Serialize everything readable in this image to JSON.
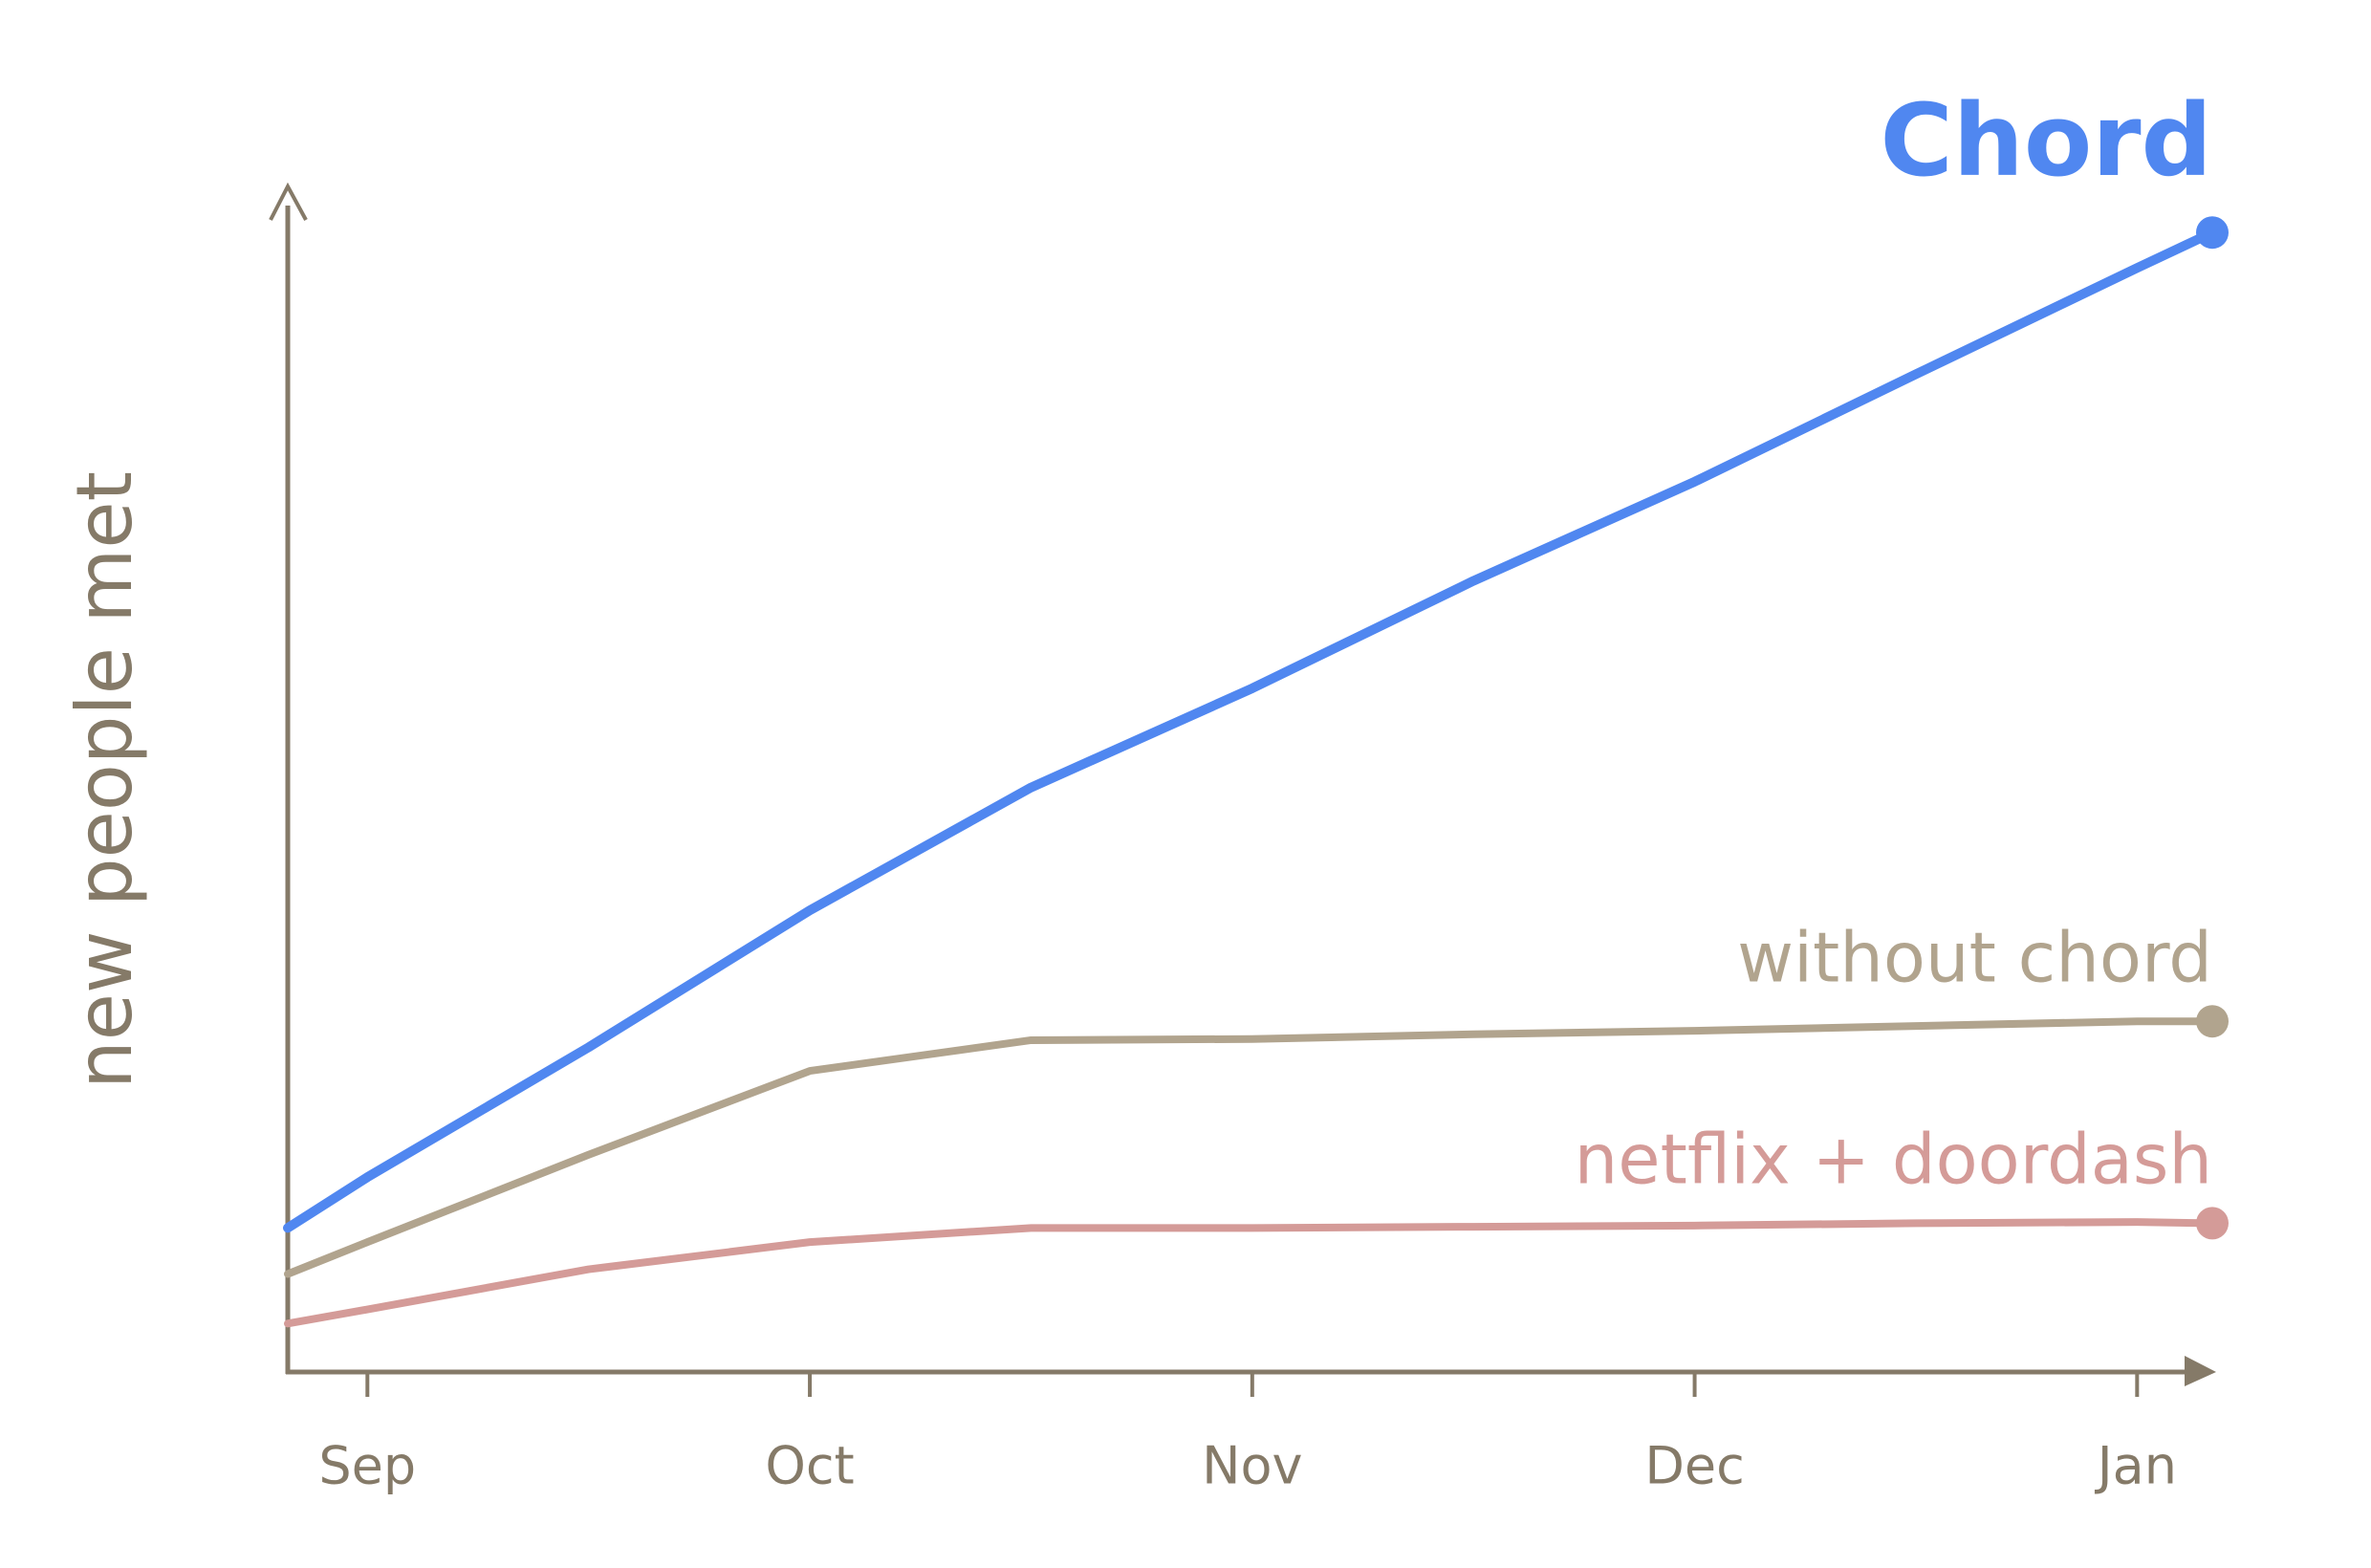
{
  "chart_data": {
    "type": "line",
    "y_label": "new people met",
    "x": [
      -0.18,
      0,
      0.5,
      1,
      1.5,
      2,
      2.5,
      3,
      3.5,
      4,
      4.17
    ],
    "xlim": [
      -0.18,
      4.17
    ],
    "xticks": [
      {
        "value": 0,
        "label": "Sep"
      },
      {
        "value": 1,
        "label": "Oct"
      },
      {
        "value": 2,
        "label": "Nov"
      },
      {
        "value": 3,
        "label": "Dec"
      },
      {
        "value": 4,
        "label": "Jan"
      }
    ],
    "ylim": [
      0,
      100
    ],
    "series": [
      {
        "name": "Chord",
        "color": "#5087f0",
        "values": [
          12.2,
          16.5,
          27.5,
          39.1,
          49.5,
          57.9,
          67.0,
          75.4,
          84.5,
          93.5,
          96.5
        ]
      },
      {
        "name": "without chord",
        "color": "#b1a48e",
        "values": [
          8.3,
          11.0,
          18.4,
          25.5,
          28.1,
          28.2,
          28.6,
          28.9,
          29.3,
          29.7,
          29.7
        ]
      },
      {
        "name": "netflix + doordash",
        "color": "#d49b98",
        "values": [
          4.1,
          5.3,
          8.7,
          11.0,
          12.2,
          12.2,
          12.3,
          12.4,
          12.6,
          12.7,
          12.6
        ]
      }
    ]
  }
}
